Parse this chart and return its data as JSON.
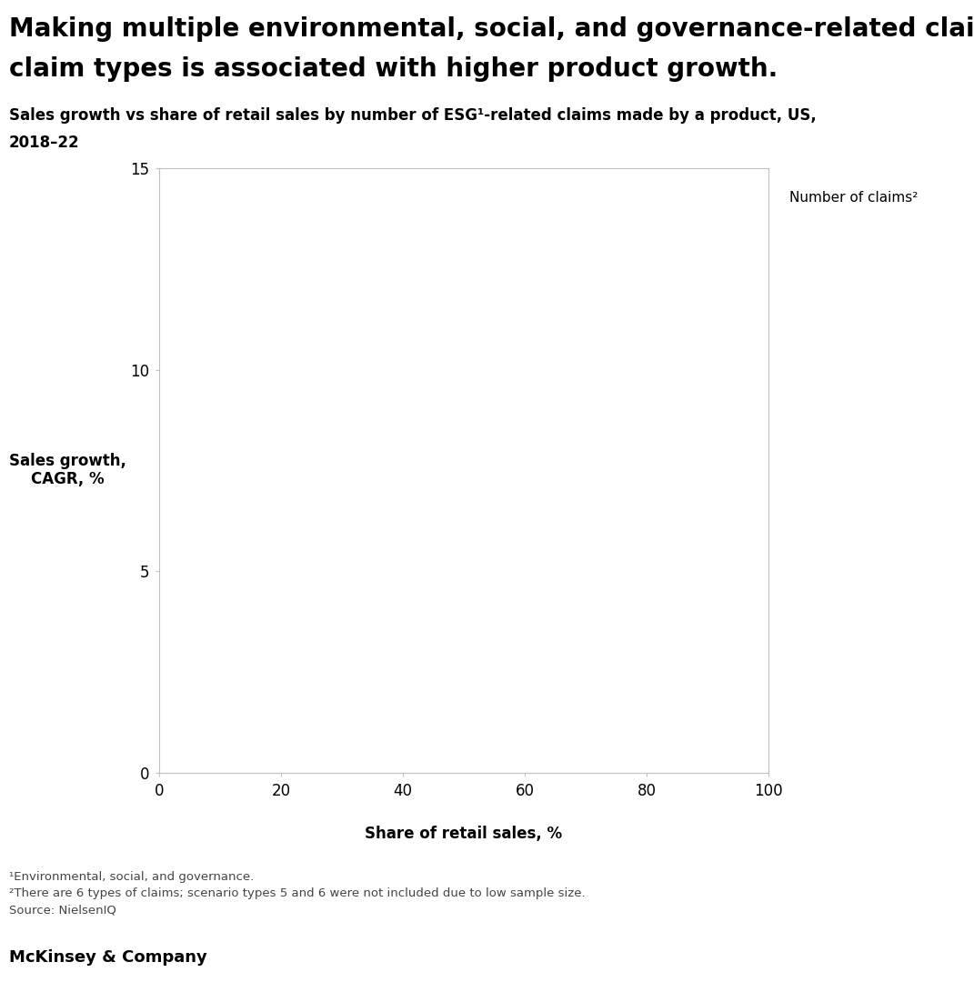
{
  "title_line1": "Making multiple environmental, social, and governance-related claims across",
  "title_line2": "claim types is associated with higher product growth.",
  "subtitle_line1": "Sales growth vs share of retail sales by number of ESG¹-related claims made by a product, US,",
  "subtitle_line2": "2018–22",
  "ylabel": "Sales growth,\nCAGR, %",
  "xlabel": "Share of retail sales, %",
  "legend_label": "Number of claims²",
  "xlim": [
    0,
    100
  ],
  "ylim": [
    0,
    15
  ],
  "xticks": [
    0,
    20,
    40,
    60,
    80,
    100
  ],
  "yticks": [
    0,
    5,
    10,
    15
  ],
  "footnote1": "¹Environmental, social, and governance.",
  "footnote2": "²There are 6 types of claims; scenario types 5 and 6 were not included due to low sample size.",
  "footnote3": "Source: NielsenIQ",
  "brand": "McKinsey & Company",
  "background_color": "#ffffff",
  "axis_color": "#c0c0c0",
  "tick_label_color": "#000000",
  "title_color": "#000000",
  "footnote_color": "#444444"
}
